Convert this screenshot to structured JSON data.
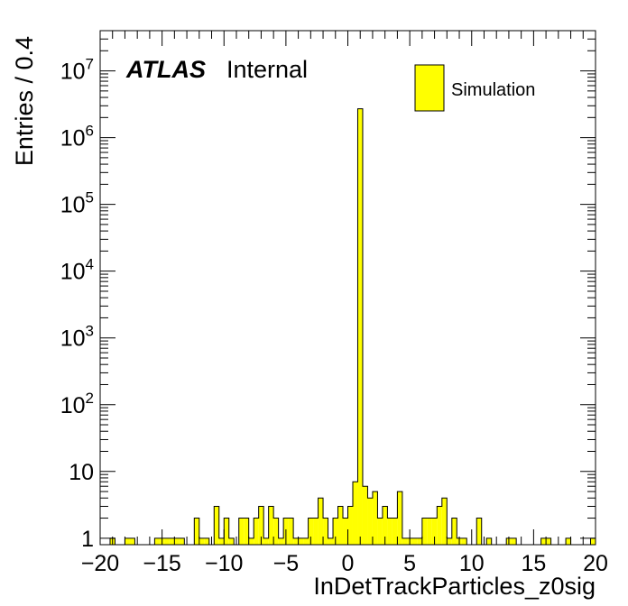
{
  "chart_data": {
    "type": "bar",
    "xlabel": "InDetTrackParticles_z0sig",
    "ylabel": "Entries / 0.4",
    "xlim": [
      -20,
      20
    ],
    "ylim": [
      0.8,
      40000000
    ],
    "y_scale": "log",
    "bin_width": 0.4,
    "x_ticks": [
      -20,
      -15,
      -10,
      -5,
      0,
      5,
      10,
      15,
      20
    ],
    "x_tick_labels": [
      "−20",
      "−15",
      "−10",
      "−5",
      "0",
      "5",
      "10",
      "15",
      "20"
    ],
    "y_tick_labels": [
      {
        "value": 1,
        "base": "1",
        "exp": ""
      },
      {
        "value": 10,
        "base": "10",
        "exp": ""
      },
      {
        "value": 100,
        "base": "10",
        "exp": "2"
      },
      {
        "value": 1000,
        "base": "10",
        "exp": "3"
      },
      {
        "value": 10000,
        "base": "10",
        "exp": "4"
      },
      {
        "value": 100000,
        "base": "10",
        "exp": "5"
      },
      {
        "value": 1000000,
        "base": "10",
        "exp": "6"
      },
      {
        "value": 10000000,
        "base": "10",
        "exp": "7"
      }
    ],
    "fill_color": "#ffff00",
    "line_color": "#000000",
    "annotation": {
      "experiment": "ATLAS",
      "status": "Internal"
    },
    "legend": {
      "position": "top-right",
      "entries": [
        {
          "name": "Simulation",
          "color": "#ffff00"
        }
      ]
    },
    "series": [
      {
        "name": "Simulation",
        "bins": [
          {
            "x": -19.2,
            "y": 1
          },
          {
            "x": -18.0,
            "y": 1
          },
          {
            "x": -17.6,
            "y": 1
          },
          {
            "x": -15.6,
            "y": 1
          },
          {
            "x": -15.2,
            "y": 1
          },
          {
            "x": -14.8,
            "y": 1
          },
          {
            "x": -14.4,
            "y": 1
          },
          {
            "x": -14.0,
            "y": 1
          },
          {
            "x": -13.6,
            "y": 1
          },
          {
            "x": -12.4,
            "y": 2
          },
          {
            "x": -12.0,
            "y": 1
          },
          {
            "x": -11.6,
            "y": 1
          },
          {
            "x": -10.8,
            "y": 3
          },
          {
            "x": -10.4,
            "y": 1
          },
          {
            "x": -10.0,
            "y": 2
          },
          {
            "x": -9.6,
            "y": 1
          },
          {
            "x": -8.8,
            "y": 2
          },
          {
            "x": -8.4,
            "y": 2
          },
          {
            "x": -8.0,
            "y": 1
          },
          {
            "x": -7.6,
            "y": 2
          },
          {
            "x": -7.2,
            "y": 3
          },
          {
            "x": -6.8,
            "y": 1
          },
          {
            "x": -6.4,
            "y": 3
          },
          {
            "x": -6.0,
            "y": 2
          },
          {
            "x": -5.6,
            "y": 1
          },
          {
            "x": -5.2,
            "y": 2
          },
          {
            "x": -4.8,
            "y": 2
          },
          {
            "x": -4.4,
            "y": 1
          },
          {
            "x": -4.0,
            "y": 1
          },
          {
            "x": -3.6,
            "y": 1
          },
          {
            "x": -3.2,
            "y": 2
          },
          {
            "x": -2.8,
            "y": 2
          },
          {
            "x": -2.4,
            "y": 4
          },
          {
            "x": -2.0,
            "y": 2
          },
          {
            "x": -1.6,
            "y": 1
          },
          {
            "x": -1.2,
            "y": 2
          },
          {
            "x": -0.8,
            "y": 3
          },
          {
            "x": -0.4,
            "y": 2
          },
          {
            "x": 0.0,
            "y": 3
          },
          {
            "x": 0.4,
            "y": 7
          },
          {
            "x": 0.8,
            "y": 2700000
          },
          {
            "x": 1.2,
            "y": 6
          },
          {
            "x": 1.6,
            "y": 4
          },
          {
            "x": 2.0,
            "y": 5
          },
          {
            "x": 2.4,
            "y": 2
          },
          {
            "x": 2.8,
            "y": 3
          },
          {
            "x": 3.2,
            "y": 2
          },
          {
            "x": 3.6,
            "y": 2
          },
          {
            "x": 4.0,
            "y": 5
          },
          {
            "x": 4.4,
            "y": 1
          },
          {
            "x": 4.8,
            "y": 1
          },
          {
            "x": 5.2,
            "y": 1
          },
          {
            "x": 5.6,
            "y": 1
          },
          {
            "x": 6.0,
            "y": 2
          },
          {
            "x": 6.4,
            "y": 2
          },
          {
            "x": 6.8,
            "y": 2
          },
          {
            "x": 7.2,
            "y": 3
          },
          {
            "x": 7.6,
            "y": 4
          },
          {
            "x": 8.0,
            "y": 1
          },
          {
            "x": 8.4,
            "y": 2
          },
          {
            "x": 8.8,
            "y": 1
          },
          {
            "x": 9.2,
            "y": 1
          },
          {
            "x": 10.4,
            "y": 2
          },
          {
            "x": 11.2,
            "y": 1
          },
          {
            "x": 12.8,
            "y": 1
          },
          {
            "x": 13.2,
            "y": 1
          },
          {
            "x": 15.6,
            "y": 1
          },
          {
            "x": 16.0,
            "y": 1
          },
          {
            "x": 17.6,
            "y": 1
          },
          {
            "x": 19.6,
            "y": 1
          }
        ]
      }
    ]
  }
}
